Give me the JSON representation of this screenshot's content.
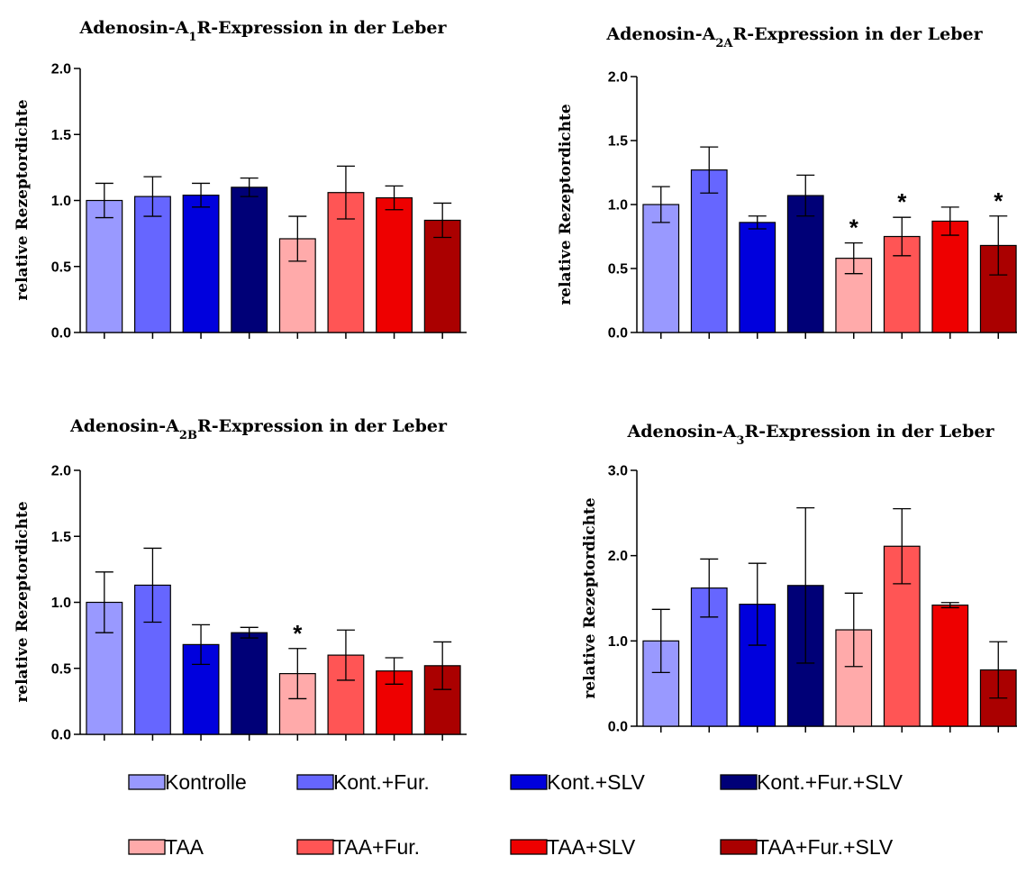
{
  "legend": [
    {
      "label": "Kontrolle",
      "color": "#9999ff"
    },
    {
      "label": "Kont.+Fur.",
      "color": "#6666ff"
    },
    {
      "label": "Kont.+SLV",
      "color": "#0000dd"
    },
    {
      "label": "Kont.+Fur.+SLV",
      "color": "#000077"
    },
    {
      "label": "TAA",
      "color": "#ffaaaa"
    },
    {
      "label": "TAA+Fur.",
      "color": "#ff5555"
    },
    {
      "label": "TAA+SLV",
      "color": "#ee0000"
    },
    {
      "label": "TAA+Fur.+SLV",
      "color": "#aa0000"
    }
  ],
  "chart_data": [
    {
      "type": "bar",
      "title_pre": "Adenosin-A",
      "title_sub": "1",
      "title_post": "R-Expression in der Leber",
      "ylabel": "relative Rezeptordichte",
      "ylim": [
        0,
        2.0
      ],
      "yticks": [
        "0.0",
        "0.5",
        "1.0",
        "1.5",
        "2.0"
      ],
      "values": [
        1.0,
        1.03,
        1.04,
        1.1,
        0.71,
        1.06,
        1.02,
        0.85
      ],
      "errors": [
        0.13,
        0.15,
        0.09,
        0.07,
        0.17,
        0.2,
        0.09,
        0.13
      ],
      "significant": [
        false,
        false,
        false,
        false,
        false,
        false,
        false,
        false
      ],
      "significance_mark": "*"
    },
    {
      "type": "bar",
      "title_pre": "Adenosin-A",
      "title_sub": "2A",
      "title_post": "R-Expression in der Leber",
      "ylabel": "relative Rezeptordichte",
      "ylim": [
        0,
        2.0
      ],
      "yticks": [
        "0.0",
        "0.5",
        "1.0",
        "1.5",
        "2.0"
      ],
      "values": [
        1.0,
        1.27,
        0.86,
        1.07,
        0.58,
        0.75,
        0.87,
        0.68
      ],
      "errors": [
        0.14,
        0.18,
        0.05,
        0.16,
        0.12,
        0.15,
        0.11,
        0.23
      ],
      "significant": [
        false,
        false,
        false,
        false,
        true,
        true,
        false,
        true
      ],
      "significance_mark": "*"
    },
    {
      "type": "bar",
      "title_pre": "Adenosin-A",
      "title_sub": "2B",
      "title_post": "R-Expression in der Leber",
      "ylabel": "relative Rezeptordichte",
      "ylim": [
        0,
        2.0
      ],
      "yticks": [
        "0.0",
        "0.5",
        "1.0",
        "1.5",
        "2.0"
      ],
      "values": [
        1.0,
        1.13,
        0.68,
        0.77,
        0.46,
        0.6,
        0.48,
        0.52
      ],
      "errors": [
        0.23,
        0.28,
        0.15,
        0.04,
        0.19,
        0.19,
        0.1,
        0.18
      ],
      "significant": [
        false,
        false,
        false,
        false,
        true,
        false,
        false,
        false
      ],
      "significance_mark": "*"
    },
    {
      "type": "bar",
      "title_pre": "Adenosin-A",
      "title_sub": "3",
      "title_post": "R-Expression in der Leber",
      "ylabel": "relative Rezeptordichte",
      "ylim": [
        0,
        3.0
      ],
      "yticks": [
        "0.0",
        "1.0",
        "2.0",
        "3.0"
      ],
      "values": [
        1.0,
        1.62,
        1.43,
        1.65,
        1.13,
        2.11,
        1.42,
        0.66
      ],
      "errors": [
        0.37,
        0.34,
        0.48,
        0.91,
        0.43,
        0.44,
        0.03,
        0.33
      ],
      "significant": [
        false,
        false,
        false,
        false,
        false,
        false,
        false,
        false
      ],
      "significance_mark": "*"
    }
  ]
}
